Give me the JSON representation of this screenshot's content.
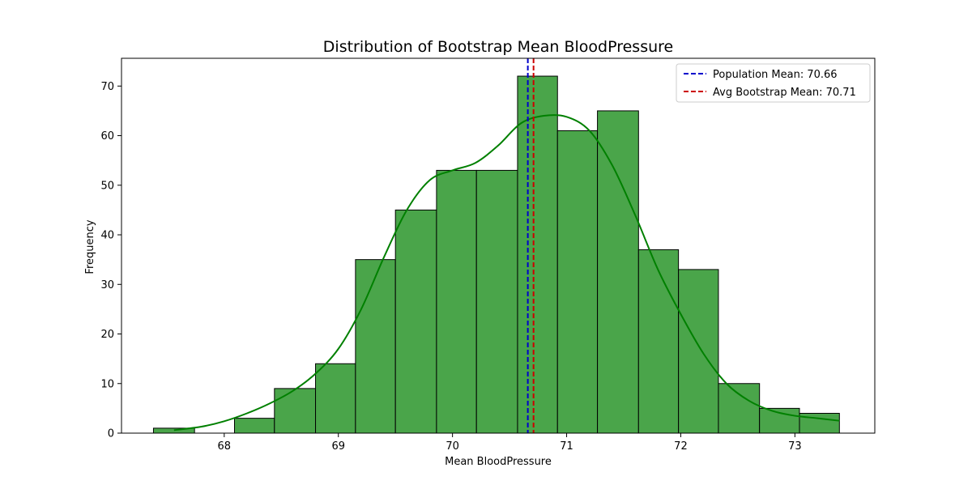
{
  "chart_data": {
    "type": "bar",
    "title": "Distribution of Bootstrap Mean BloodPressure",
    "xlabel": "Mean BloodPressure",
    "ylabel": "Frequency",
    "xlim": [
      67.1,
      73.7
    ],
    "ylim": [
      0,
      75.6
    ],
    "xticks": [
      68,
      69,
      70,
      71,
      72,
      73
    ],
    "yticks": [
      0,
      10,
      20,
      30,
      40,
      50,
      60,
      70
    ],
    "grid": false,
    "bar_color": "#4aa54a",
    "bar_edge_color": "#000000",
    "bins": [
      {
        "x0": 67.38,
        "x1": 67.74,
        "count": 1
      },
      {
        "x0": 67.74,
        "x1": 68.09,
        "count": 0
      },
      {
        "x0": 68.09,
        "x1": 68.44,
        "count": 3
      },
      {
        "x0": 68.44,
        "x1": 68.8,
        "count": 9
      },
      {
        "x0": 68.8,
        "x1": 69.15,
        "count": 14
      },
      {
        "x0": 69.15,
        "x1": 69.5,
        "count": 35
      },
      {
        "x0": 69.5,
        "x1": 69.86,
        "count": 45
      },
      {
        "x0": 69.86,
        "x1": 70.21,
        "count": 53
      },
      {
        "x0": 70.21,
        "x1": 70.57,
        "count": 53
      },
      {
        "x0": 70.57,
        "x1": 70.92,
        "count": 72
      },
      {
        "x0": 70.92,
        "x1": 71.27,
        "count": 61
      },
      {
        "x0": 71.27,
        "x1": 71.63,
        "count": 65
      },
      {
        "x0": 71.63,
        "x1": 71.98,
        "count": 37
      },
      {
        "x0": 71.98,
        "x1": 72.33,
        "count": 33
      },
      {
        "x0": 72.33,
        "x1": 72.69,
        "count": 10
      },
      {
        "x0": 72.69,
        "x1": 73.04,
        "count": 5
      },
      {
        "x0": 73.04,
        "x1": 73.39,
        "count": 4
      }
    ],
    "kde": {
      "color": "#008000",
      "x": [
        67.56,
        67.8,
        68.0,
        68.2,
        68.4,
        68.6,
        68.8,
        69.0,
        69.2,
        69.4,
        69.6,
        69.8,
        70.0,
        70.2,
        70.4,
        70.6,
        70.8,
        71.0,
        71.2,
        71.4,
        71.6,
        71.8,
        72.0,
        72.2,
        72.4,
        72.6,
        72.8,
        73.0,
        73.2,
        73.39
      ],
      "y": [
        0.6,
        1.3,
        2.4,
        4.0,
        6.0,
        8.5,
        12.0,
        17.0,
        25.0,
        35.5,
        45.0,
        51.0,
        53.0,
        54.5,
        58.0,
        62.5,
        64.0,
        63.8,
        61.0,
        54.0,
        44.0,
        33.0,
        24.0,
        16.0,
        10.0,
        6.5,
        4.5,
        3.5,
        3.0,
        2.5
      ]
    },
    "reference_lines": [
      {
        "label": "Population Mean: 70.66",
        "x": 70.66,
        "color": "#0000cc"
      },
      {
        "label": "Avg Bootstrap Mean: 70.71",
        "x": 70.71,
        "color": "#cc0000"
      }
    ],
    "legend_position": "top-right"
  }
}
